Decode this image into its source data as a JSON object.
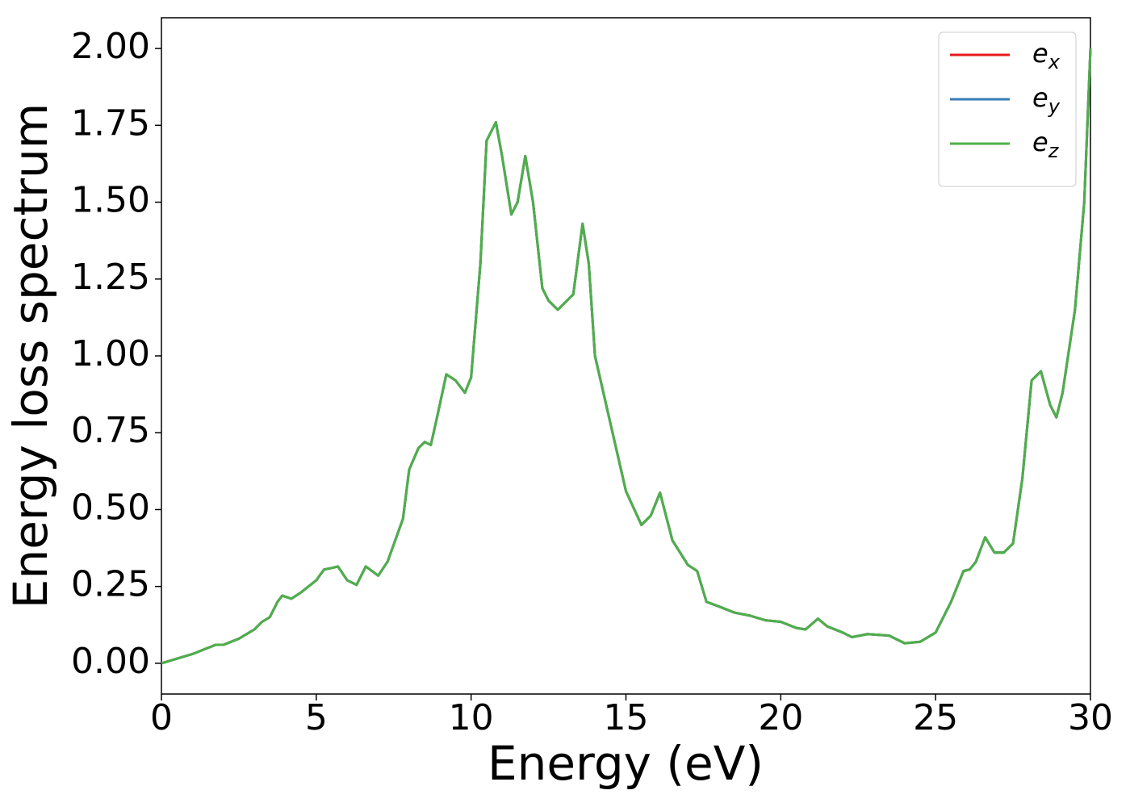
{
  "chart_data": {
    "type": "line",
    "xlabel": "Energy (eV)",
    "ylabel": "Energy loss spectrum",
    "x": [
      0,
      0.5,
      1,
      1.5,
      1.75,
      2,
      2.5,
      3,
      3.25,
      3.5,
      3.75,
      3.9,
      4.2,
      4.5,
      5,
      5.25,
      5.5,
      5.7,
      6,
      6.3,
      6.6,
      7,
      7.3,
      7.8,
      8,
      8.3,
      8.5,
      8.7,
      8.9,
      9.2,
      9.5,
      9.8,
      10,
      10.3,
      10.5,
      10.8,
      11,
      11.3,
      11.5,
      11.75,
      12,
      12.3,
      12.5,
      12.8,
      13,
      13.3,
      13.6,
      13.8,
      14,
      14.5,
      15,
      15.5,
      15.8,
      16.1,
      16.5,
      17,
      17.3,
      17.6,
      18,
      18.5,
      19,
      19.5,
      20,
      20.5,
      20.8,
      21.2,
      21.5,
      22,
      22.3,
      22.8,
      23.5,
      24,
      24.5,
      25,
      25.5,
      25.9,
      26.1,
      26.3,
      26.6,
      26.9,
      27.2,
      27.5,
      27.8,
      28.1,
      28.4,
      28.7,
      28.9,
      29.1,
      29.5,
      29.8,
      30
    ],
    "series": [
      {
        "name": "ex",
        "color": "#e41a1c",
        "values": [
          0,
          0.015,
          0.03,
          0.05,
          0.06,
          0.06,
          0.08,
          0.11,
          0.135,
          0.15,
          0.2,
          0.22,
          0.21,
          0.23,
          0.27,
          0.305,
          0.31,
          0.315,
          0.27,
          0.255,
          0.315,
          0.285,
          0.33,
          0.47,
          0.63,
          0.7,
          0.72,
          0.71,
          0.8,
          0.94,
          0.92,
          0.88,
          0.93,
          1.3,
          1.7,
          1.76,
          1.65,
          1.46,
          1.5,
          1.65,
          1.5,
          1.22,
          1.18,
          1.15,
          1.17,
          1.2,
          1.43,
          1.3,
          1.0,
          0.78,
          0.56,
          0.45,
          0.48,
          0.555,
          0.4,
          0.32,
          0.3,
          0.2,
          0.185,
          0.165,
          0.155,
          0.14,
          0.135,
          0.115,
          0.11,
          0.145,
          0.12,
          0.1,
          0.085,
          0.095,
          0.09,
          0.065,
          0.07,
          0.1,
          0.2,
          0.3,
          0.305,
          0.33,
          0.41,
          0.36,
          0.36,
          0.39,
          0.6,
          0.92,
          0.95,
          0.84,
          0.8,
          0.88,
          1.15,
          1.5,
          2.0
        ]
      },
      {
        "name": "ey",
        "color": "#377eb8",
        "values": [
          0,
          0.015,
          0.03,
          0.05,
          0.06,
          0.06,
          0.08,
          0.11,
          0.135,
          0.15,
          0.2,
          0.22,
          0.21,
          0.23,
          0.27,
          0.305,
          0.31,
          0.315,
          0.27,
          0.255,
          0.315,
          0.285,
          0.33,
          0.47,
          0.63,
          0.7,
          0.72,
          0.71,
          0.8,
          0.94,
          0.92,
          0.88,
          0.93,
          1.3,
          1.7,
          1.76,
          1.65,
          1.46,
          1.5,
          1.65,
          1.5,
          1.22,
          1.18,
          1.15,
          1.17,
          1.2,
          1.43,
          1.3,
          1.0,
          0.78,
          0.56,
          0.45,
          0.48,
          0.555,
          0.4,
          0.32,
          0.3,
          0.2,
          0.185,
          0.165,
          0.155,
          0.14,
          0.135,
          0.115,
          0.11,
          0.145,
          0.12,
          0.1,
          0.085,
          0.095,
          0.09,
          0.065,
          0.07,
          0.1,
          0.2,
          0.3,
          0.305,
          0.33,
          0.41,
          0.36,
          0.36,
          0.39,
          0.6,
          0.92,
          0.95,
          0.84,
          0.8,
          0.88,
          1.15,
          1.5,
          2.0
        ]
      },
      {
        "name": "ez",
        "color": "#4daf4a",
        "values": [
          0,
          0.015,
          0.03,
          0.05,
          0.06,
          0.06,
          0.08,
          0.11,
          0.135,
          0.15,
          0.2,
          0.22,
          0.21,
          0.23,
          0.27,
          0.305,
          0.31,
          0.315,
          0.27,
          0.255,
          0.315,
          0.285,
          0.33,
          0.47,
          0.63,
          0.7,
          0.72,
          0.71,
          0.8,
          0.94,
          0.92,
          0.88,
          0.93,
          1.3,
          1.7,
          1.76,
          1.65,
          1.46,
          1.5,
          1.65,
          1.5,
          1.22,
          1.18,
          1.15,
          1.17,
          1.2,
          1.43,
          1.3,
          1.0,
          0.78,
          0.56,
          0.45,
          0.48,
          0.555,
          0.4,
          0.32,
          0.3,
          0.2,
          0.185,
          0.165,
          0.155,
          0.14,
          0.135,
          0.115,
          0.11,
          0.145,
          0.12,
          0.1,
          0.085,
          0.095,
          0.09,
          0.065,
          0.07,
          0.1,
          0.2,
          0.3,
          0.305,
          0.33,
          0.41,
          0.36,
          0.36,
          0.39,
          0.6,
          0.92,
          0.95,
          0.84,
          0.8,
          0.88,
          1.15,
          1.5,
          2.0
        ]
      }
    ],
    "xlim": [
      0,
      30
    ],
    "xticks": [
      0,
      5,
      10,
      15,
      20,
      25,
      30
    ],
    "ylim": [
      -0.1,
      2.1
    ],
    "yticks": [
      {
        "value": 0,
        "label": "0.00"
      },
      {
        "value": 0.25,
        "label": "0.25"
      },
      {
        "value": 0.5,
        "label": "0.50"
      },
      {
        "value": 0.75,
        "label": "0.75"
      },
      {
        "value": 1,
        "label": "1.00"
      },
      {
        "value": 1.25,
        "label": "1.25"
      },
      {
        "value": 1.5,
        "label": "1.50"
      },
      {
        "value": 1.75,
        "label": "1.75"
      },
      {
        "value": 2,
        "label": "2.00"
      }
    ],
    "grid": false,
    "legend": "upper right"
  }
}
